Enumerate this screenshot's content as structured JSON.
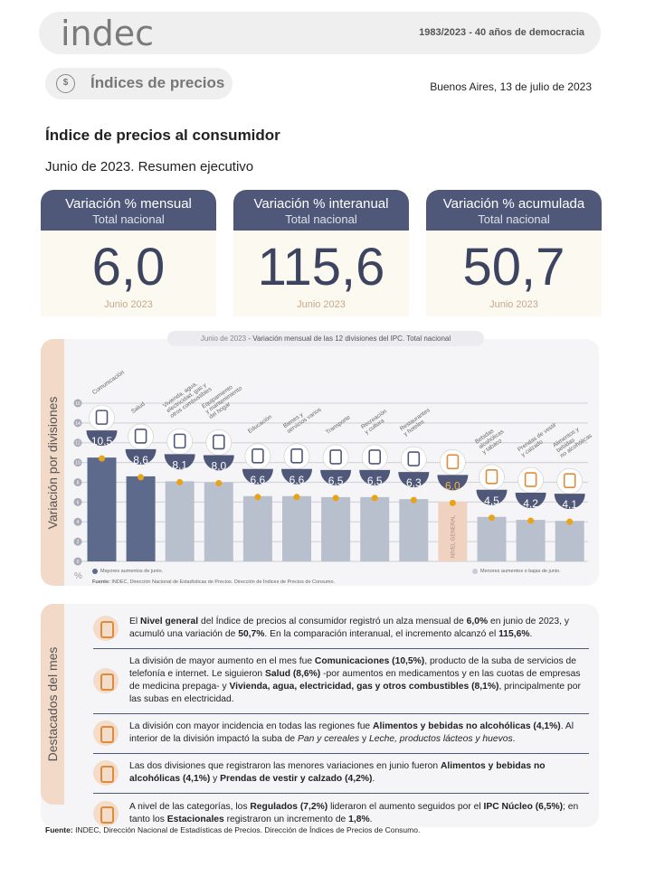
{
  "header": {
    "logo": "indec",
    "motto": "1983/2023 - 40 años de democracia",
    "section": "Índices de precios",
    "section_icon": "price-tag-icon",
    "date": "Buenos Aires, 13 de julio de 2023"
  },
  "title": "Índice de precios al consumidor",
  "period": "Junio de 2023. Resumen ejecutivo",
  "cards": [
    {
      "title": "Variación % mensual",
      "subtitle": "Total nacional",
      "value": "6,0",
      "footer": "Junio 2023"
    },
    {
      "title": "Variación % interanual",
      "subtitle": "Total nacional",
      "value": "115,6",
      "footer": "Junio 2023"
    },
    {
      "title": "Variación % acumulada",
      "subtitle": "Total nacional",
      "value": "50,7",
      "footer": "Junio 2023"
    }
  ],
  "chart_panel": {
    "side_label": "Variación por divisiones",
    "title_date": "Junio de 2023",
    "title_text": " - Variación mensual de las 12 divisiones del IPC. Total nacional",
    "unit": "%",
    "legend_high": "Mayores aumentos de junio.",
    "legend_low": "Menores aumentos o bajas de junio.",
    "source_label": "Fuente:",
    "source_text": " INDEC, Dirección Nacional de Estadísticas de Precios. Dirección de Índices de Precios de Consumo."
  },
  "colors": {
    "high": "#5d6a8c",
    "low": "#b9c0cd",
    "general": "#efd3c0",
    "dot": "#e8a317",
    "badge": "#4f5878"
  },
  "chart_data": {
    "type": "bar",
    "title": "Junio de 2023 - Variación mensual de las 12 divisiones del IPC. Total nacional",
    "ylabel": "%",
    "ylim": [
      0,
      16
    ],
    "yticks": [
      0,
      2,
      4,
      6,
      8,
      10,
      12,
      14,
      16
    ],
    "grid": true,
    "categories": [
      "Comunicación",
      "Salud",
      "Vivienda, agua, electricidad, gas y otros combustibles",
      "Equipamiento y mantenimiento del hogar",
      "Educación",
      "Bienes y servicios varios",
      "Transporte",
      "Recreación y cultura",
      "Restaurantes y hoteles",
      "Nivel general",
      "Bebidas alcohólicas y tabaco",
      "Prendas de vestir y calzado",
      "Alimentos y bebidas no alcohólicas"
    ],
    "display_labels": [
      "Comunicación",
      "Salud",
      "Vivienda, agua,\nelectricidad, gas y\notros combustibles",
      "Equipamiento\ny mantenimiento\ndel hogar",
      "Educación",
      "Bienes y\nservicios varios",
      "Transporte",
      "Recreación\ny cultura",
      "Restaurantes\ny hoteles",
      "NIVEL GENERAL",
      "Bebidas\nalcohólicas\ny tabaco",
      "Prendas de vestir\ny calzado",
      "Alimentos y\nbebidas\nno alcohólicas"
    ],
    "values": [
      10.5,
      8.6,
      8.1,
      8.0,
      6.6,
      6.6,
      6.5,
      6.5,
      6.3,
      6.0,
      4.5,
      4.2,
      4.1
    ],
    "value_labels": [
      "10,5",
      "8,6",
      "8,1",
      "8,0",
      "6,6",
      "6,6",
      "6,5",
      "6,5",
      "6,3",
      "6,0",
      "4,5",
      "4,2",
      "4,1"
    ],
    "group": [
      "high",
      "high",
      "low",
      "low",
      "low",
      "low",
      "low",
      "low",
      "low",
      "general",
      "low",
      "low",
      "low"
    ]
  },
  "highlights": {
    "side_label": "Destacados del mes",
    "items": [
      {
        "segments": [
          {
            "t": "El "
          },
          {
            "t": "Nivel general",
            "b": 1
          },
          {
            "t": " del Índice de precios al consumidor registró un alza mensual de "
          },
          {
            "t": "6,0%",
            "b": 1
          },
          {
            "t": " en junio de 2023, y acumuló una variación de "
          },
          {
            "t": "50,7%",
            "b": 1
          },
          {
            "t": ". En la comparación interanual, el incremento alcanzó el "
          },
          {
            "t": "115,6%",
            "b": 1
          },
          {
            "t": "."
          }
        ]
      },
      {
        "segments": [
          {
            "t": "La división de mayor aumento en el mes fue "
          },
          {
            "t": "Comunicaciones (10,5%)",
            "b": 1
          },
          {
            "t": ", producto de la suba de servicios de telefonía e internet. Le siguieron "
          },
          {
            "t": "Salud (8,6%)",
            "b": 1
          },
          {
            "t": " -por aumentos en medicamentos y en las cuotas de empresas de medicina prepaga- y "
          },
          {
            "t": "Vivienda, agua, electricidad, gas y otros combustibles (8,1%)",
            "b": 1
          },
          {
            "t": ", principalmente por las subas en electricidad."
          }
        ]
      },
      {
        "segments": [
          {
            "t": "La división con mayor incidencia en todas las regiones fue "
          },
          {
            "t": "Alimentos y bebidas no alcohólicas (4,1%)",
            "b": 1
          },
          {
            "t": ". Al interior de la división impactó la suba de "
          },
          {
            "t": "Pan y cereales",
            "i": 1
          },
          {
            "t": " y "
          },
          {
            "t": "Leche, productos lácteos y huevos",
            "i": 1
          },
          {
            "t": "."
          }
        ]
      },
      {
        "segments": [
          {
            "t": "Las dos divisiones que registraron las menores variaciones en junio fueron "
          },
          {
            "t": "Alimentos y bebidas no alcohólicas (4,1%)",
            "b": 1
          },
          {
            "t": " y "
          },
          {
            "t": "Prendas de vestir y calzado (4,2%)",
            "b": 1
          },
          {
            "t": "."
          }
        ]
      },
      {
        "segments": [
          {
            "t": "A nivel de las categorías, los "
          },
          {
            "t": "Regulados (7,2%)",
            "b": 1
          },
          {
            "t": " lideraron el aumento seguidos por el "
          },
          {
            "t": "IPC Núcleo (6,5%)",
            "b": 1
          },
          {
            "t": "; en tanto los "
          },
          {
            "t": "Estacionales",
            "b": 1
          },
          {
            "t": " registraron un incremento de "
          },
          {
            "t": "1,8%",
            "b": 1
          },
          {
            "t": "."
          }
        ]
      }
    ]
  },
  "footer": {
    "label": "Fuente:",
    "text": " INDEC, Dirección Nacional de Estadísticas de Precios. Dirección de Índices de Precios de Consumo."
  }
}
